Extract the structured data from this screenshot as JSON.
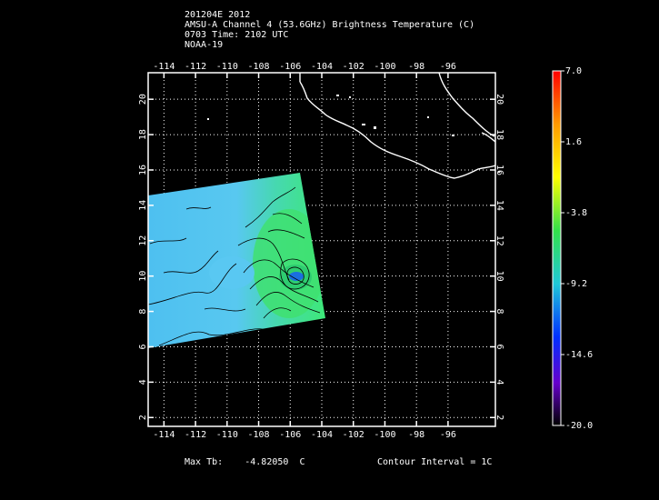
{
  "header": {
    "line1": "201204E 2012",
    "line2": "AMSU-A Channel 4 (53.6GHz) Brightness Temperature (C)",
    "line3": "0703 Time: 2102 UTC",
    "line4": "NOAA-19"
  },
  "map": {
    "lon_range": [
      -115,
      -93
    ],
    "lat_range": [
      1.5,
      21.5
    ],
    "lon_ticks": [
      "-114",
      "-112",
      "-110",
      "-108",
      "-106",
      "-104",
      "-102",
      "-100",
      "-98",
      "-96"
    ],
    "lat_ticks": [
      "2",
      "4",
      "6",
      "8",
      "10",
      "12",
      "14",
      "16",
      "18",
      "20"
    ],
    "grid": "dotted"
  },
  "colorbar": {
    "labels": [
      "7.0",
      "1.6",
      "-3.8",
      "-9.2",
      "-14.6",
      "-20.0"
    ],
    "max": 7.0,
    "min": -20.0
  },
  "footer": {
    "max_tb_label": "Max Tb:",
    "max_tb_value": "-4.82050",
    "max_tb_unit": "C",
    "contour_interval": "Contour Interval = 1C"
  },
  "colors": {
    "background": "#000000",
    "coastline": "#ffffff",
    "swath_cold": "#48b8f0",
    "swath_warm": "#40e070"
  }
}
